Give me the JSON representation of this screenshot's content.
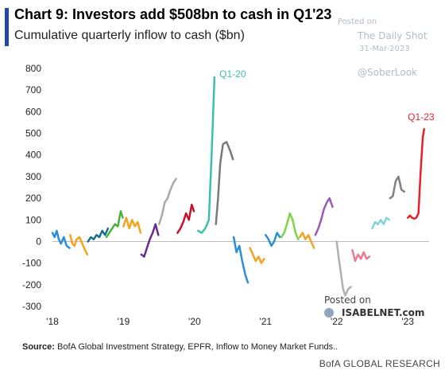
{
  "title": "Chart 9: Investors add $508bn to cash in Q1'23",
  "subtitle": "Cumulative quarterly inflow to cash ($bn)",
  "watermark": {
    "line1": "Posted on",
    "line2": "The Daily Shot",
    "line3": "31-Mar-2023",
    "line4": "@SoberLook"
  },
  "isabelnet": {
    "posted_on": "Posted on",
    "brand": "ISABELNET.com"
  },
  "source_label": "Source:",
  "source_text": "BofA Global Investment Strategy, EPFR, Inflow to Money Market Funds..",
  "brand": "BofA GLOBAL RESEARCH",
  "chart_data": {
    "type": "line",
    "title": "",
    "xlabel": "",
    "ylabel": "",
    "ylim": [
      -300,
      800
    ],
    "yticks": [
      -300,
      -200,
      -100,
      0,
      100,
      200,
      300,
      400,
      500,
      600,
      700,
      800
    ],
    "xlim": [
      2018.0,
      2023.3
    ],
    "xticks": [
      {
        "label": "'18",
        "x": 2018
      },
      {
        "label": "'19",
        "x": 2019
      },
      {
        "label": "'20",
        "x": 2020
      },
      {
        "label": "'21",
        "x": 2021
      },
      {
        "label": "'22",
        "x": 2022
      },
      {
        "label": "'23",
        "x": 2023
      }
    ],
    "grid": false,
    "annotations": [
      {
        "text": "Q1-20",
        "x": 2020.35,
        "y": 760,
        "color": "#3bbfa8"
      },
      {
        "text": "Q1-23",
        "x": 2023.0,
        "y": 560,
        "color": "#e8202a"
      }
    ],
    "series": [
      {
        "color": "#2a8fd8",
        "points": [
          [
            2018.0,
            40
          ],
          [
            2018.03,
            20
          ],
          [
            2018.06,
            50
          ],
          [
            2018.09,
            10
          ],
          [
            2018.12,
            -10
          ],
          [
            2018.16,
            20
          ],
          [
            2018.2,
            -20
          ],
          [
            2018.24,
            -30
          ]
        ]
      },
      {
        "color": "#f5a31e",
        "points": [
          [
            2018.25,
            30
          ],
          [
            2018.28,
            -10
          ],
          [
            2018.31,
            -20
          ],
          [
            2018.34,
            10
          ],
          [
            2018.38,
            20
          ],
          [
            2018.42,
            -10
          ],
          [
            2018.46,
            -40
          ],
          [
            2018.49,
            -60
          ]
        ]
      },
      {
        "color": "#1a6f8c",
        "points": [
          [
            2018.5,
            0
          ],
          [
            2018.54,
            20
          ],
          [
            2018.58,
            10
          ],
          [
            2018.62,
            30
          ],
          [
            2018.66,
            20
          ],
          [
            2018.7,
            50
          ],
          [
            2018.74,
            30
          ],
          [
            2018.78,
            60
          ]
        ]
      },
      {
        "color": "#4caf3a",
        "points": [
          [
            2018.76,
            20
          ],
          [
            2018.8,
            40
          ],
          [
            2018.84,
            60
          ],
          [
            2018.88,
            80
          ],
          [
            2018.92,
            70
          ],
          [
            2018.96,
            140
          ],
          [
            2018.99,
            110
          ]
        ]
      },
      {
        "color": "#f5a31e",
        "points": [
          [
            2019.0,
            70
          ],
          [
            2019.04,
            110
          ],
          [
            2019.08,
            60
          ],
          [
            2019.12,
            100
          ],
          [
            2019.16,
            70
          ],
          [
            2019.2,
            90
          ],
          [
            2019.24,
            40
          ]
        ]
      },
      {
        "color": "#6b2a8a",
        "points": [
          [
            2019.25,
            -60
          ],
          [
            2019.29,
            -70
          ],
          [
            2019.33,
            -30
          ],
          [
            2019.37,
            10
          ],
          [
            2019.41,
            40
          ],
          [
            2019.45,
            80
          ],
          [
            2019.49,
            30
          ]
        ]
      },
      {
        "color": "#a9a9a9",
        "points": [
          [
            2019.5,
            80
          ],
          [
            2019.54,
            120
          ],
          [
            2019.58,
            180
          ],
          [
            2019.62,
            200
          ],
          [
            2019.66,
            240
          ],
          [
            2019.7,
            270
          ],
          [
            2019.74,
            290
          ]
        ]
      },
      {
        "color": "#c8102e",
        "points": [
          [
            2019.76,
            40
          ],
          [
            2019.8,
            60
          ],
          [
            2019.84,
            90
          ],
          [
            2019.88,
            130
          ],
          [
            2019.92,
            100
          ],
          [
            2019.96,
            170
          ],
          [
            2019.99,
            140
          ]
        ]
      },
      {
        "color": "#3bbfa8",
        "points": [
          [
            2020.05,
            50
          ],
          [
            2020.1,
            40
          ],
          [
            2020.15,
            60
          ],
          [
            2020.2,
            100
          ],
          [
            2020.24,
            400
          ],
          [
            2020.28,
            760
          ]
        ]
      },
      {
        "color": "#7a7a7a",
        "points": [
          [
            2020.3,
            80
          ],
          [
            2020.33,
            200
          ],
          [
            2020.36,
            360
          ],
          [
            2020.4,
            450
          ],
          [
            2020.45,
            460
          ],
          [
            2020.5,
            420
          ],
          [
            2020.54,
            380
          ]
        ]
      },
      {
        "color": "#2a8fd8",
        "points": [
          [
            2020.55,
            20
          ],
          [
            2020.59,
            -50
          ],
          [
            2020.63,
            -20
          ],
          [
            2020.67,
            -90
          ],
          [
            2020.71,
            -150
          ],
          [
            2020.75,
            -190
          ]
        ]
      },
      {
        "color": "#f5a31e",
        "points": [
          [
            2020.78,
            -30
          ],
          [
            2020.82,
            -60
          ],
          [
            2020.86,
            -90
          ],
          [
            2020.9,
            -70
          ],
          [
            2020.94,
            -100
          ],
          [
            2020.98,
            -80
          ]
        ]
      },
      {
        "color": "#2a8fd8",
        "points": [
          [
            2021.0,
            30
          ],
          [
            2021.04,
            10
          ],
          [
            2021.08,
            -20
          ],
          [
            2021.12,
            0
          ],
          [
            2021.16,
            40
          ],
          [
            2021.2,
            20
          ]
        ]
      },
      {
        "color": "#7dd34a",
        "points": [
          [
            2021.22,
            20
          ],
          [
            2021.26,
            40
          ],
          [
            2021.3,
            80
          ],
          [
            2021.34,
            130
          ],
          [
            2021.38,
            100
          ],
          [
            2021.42,
            40
          ],
          [
            2021.46,
            10
          ]
        ]
      },
      {
        "color": "#f5a31e",
        "points": [
          [
            2021.48,
            20
          ],
          [
            2021.52,
            40
          ],
          [
            2021.56,
            10
          ],
          [
            2021.6,
            30
          ],
          [
            2021.64,
            0
          ],
          [
            2021.68,
            -30
          ]
        ]
      },
      {
        "color": "#9b59b6",
        "points": [
          [
            2021.7,
            30
          ],
          [
            2021.74,
            60
          ],
          [
            2021.78,
            100
          ],
          [
            2021.82,
            150
          ],
          [
            2021.86,
            180
          ],
          [
            2021.9,
            200
          ],
          [
            2021.94,
            160
          ]
        ]
      },
      {
        "color": "#b0b0b0",
        "points": [
          [
            2022.0,
            0
          ],
          [
            2022.03,
            -80
          ],
          [
            2022.06,
            -150
          ],
          [
            2022.09,
            -220
          ],
          [
            2022.12,
            -250
          ],
          [
            2022.16,
            -220
          ],
          [
            2022.2,
            -210
          ]
        ]
      },
      {
        "color": "#e87a92",
        "points": [
          [
            2022.22,
            -40
          ],
          [
            2022.26,
            -90
          ],
          [
            2022.3,
            -60
          ],
          [
            2022.34,
            -80
          ],
          [
            2022.38,
            -50
          ],
          [
            2022.42,
            -80
          ],
          [
            2022.46,
            -70
          ]
        ]
      },
      {
        "color": "#7fd6d0",
        "points": [
          [
            2022.5,
            60
          ],
          [
            2022.54,
            90
          ],
          [
            2022.58,
            80
          ],
          [
            2022.62,
            100
          ],
          [
            2022.66,
            80
          ],
          [
            2022.7,
            110
          ],
          [
            2022.74,
            100
          ]
        ]
      },
      {
        "color": "#808080",
        "points": [
          [
            2022.75,
            200
          ],
          [
            2022.79,
            210
          ],
          [
            2022.83,
            280
          ],
          [
            2022.87,
            300
          ],
          [
            2022.91,
            240
          ],
          [
            2022.95,
            230
          ]
        ]
      },
      {
        "color": "#e8202a",
        "points": [
          [
            2023.0,
            110
          ],
          [
            2023.03,
            120
          ],
          [
            2023.06,
            110
          ],
          [
            2023.09,
            105
          ],
          [
            2023.12,
            110
          ],
          [
            2023.15,
            130
          ],
          [
            2023.18,
            320
          ],
          [
            2023.21,
            480
          ],
          [
            2023.23,
            520
          ]
        ]
      }
    ]
  }
}
